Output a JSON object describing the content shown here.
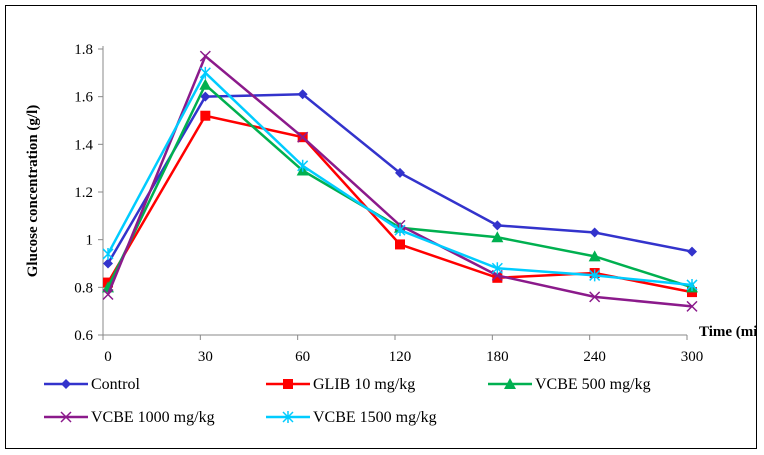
{
  "chart_data": {
    "type": "line",
    "title": "",
    "xlabel": "Time (min)",
    "ylabel": "Glucose concentration (g/l)",
    "categories": [
      "0",
      "30",
      "60",
      "120",
      "180",
      "240",
      "300"
    ],
    "ylim": [
      0.6,
      1.8
    ],
    "yticks": [
      "0.6",
      "0.8",
      "1",
      "1.2",
      "1.4",
      "1.6",
      "1.8"
    ],
    "grid": false,
    "legend_position": "bottom",
    "series": [
      {
        "name": "Control",
        "color": "#3333CC",
        "marker": "diamond",
        "values": [
          0.9,
          1.6,
          1.61,
          1.28,
          1.06,
          1.03,
          0.95
        ]
      },
      {
        "name": "GLIB 10 mg/kg",
        "color": "#FF0000",
        "marker": "square",
        "values": [
          0.82,
          1.52,
          1.43,
          0.98,
          0.84,
          0.86,
          0.78
        ]
      },
      {
        "name": "VCBE 500 mg/kg",
        "color": "#00B050",
        "marker": "triangle",
        "values": [
          0.8,
          1.65,
          1.29,
          1.05,
          1.01,
          0.93,
          0.8
        ]
      },
      {
        "name": "VCBE 1000 mg/kg",
        "color": "#8B1A8B",
        "marker": "x",
        "values": [
          0.77,
          1.77,
          1.43,
          1.06,
          0.85,
          0.76,
          0.72
        ]
      },
      {
        "name": "VCBE 1500 mg/kg",
        "color": "#00CCFF",
        "marker": "asterisk",
        "values": [
          0.94,
          1.7,
          1.31,
          1.04,
          0.88,
          0.85,
          0.81
        ]
      }
    ]
  }
}
